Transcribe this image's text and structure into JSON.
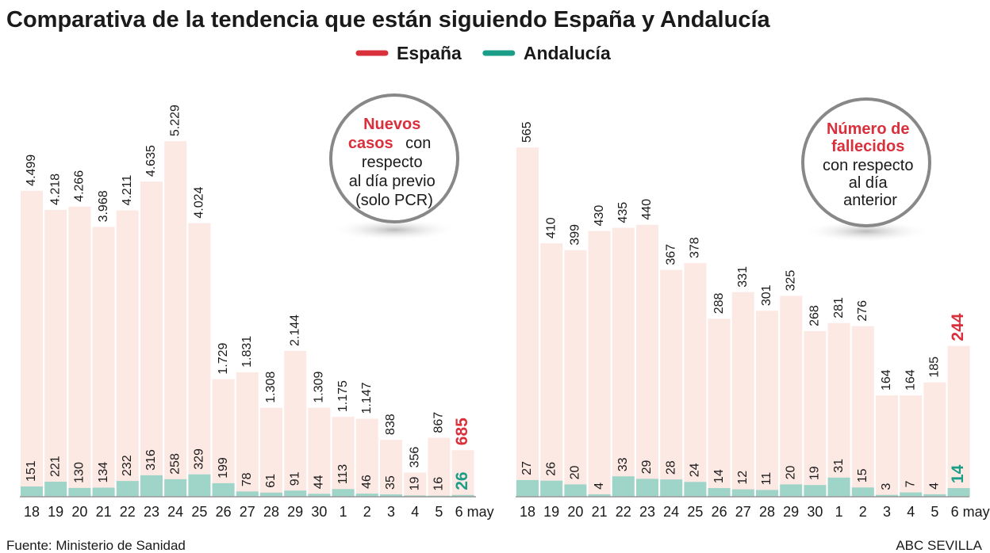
{
  "title": "Comparativa de la tendencia que están siguiendo España y Andalucía",
  "source": "Fuente: Ministerio de Sanidad",
  "credit": "ABC SEVILLA",
  "chart_data": [
    {
      "type": "bar",
      "annotation": {
        "highlight": [
          "Nuevos",
          "casos"
        ],
        "lines": [
          "con",
          "respecto",
          "al día previo",
          "(solo PCR)"
        ]
      },
      "categories": [
        "18",
        "19",
        "20",
        "21",
        "22",
        "23",
        "24",
        "25",
        "26",
        "27",
        "28",
        "29",
        "30",
        "1",
        "2",
        "3",
        "4",
        "5",
        "6 may"
      ],
      "ylim": [
        0,
        6000
      ],
      "series": [
        {
          "name": "España",
          "color": "#d9303c",
          "bar_color": "#fde9e4",
          "values": [
            4499,
            4218,
            4266,
            3968,
            4211,
            4635,
            5229,
            4024,
            1729,
            1831,
            1308,
            2144,
            1309,
            1175,
            1147,
            838,
            356,
            867,
            685
          ],
          "value_labels": [
            "4.499",
            "4.218",
            "4.266",
            "3.968",
            "4.211",
            "4.635",
            "5.229",
            "4.024",
            "1.729",
            "1.831",
            "1.308",
            "2.144",
            "1.309",
            "1.175",
            "1.147",
            "838",
            "356",
            "867",
            "685"
          ]
        },
        {
          "name": "Andalucía",
          "color": "#1a9e88",
          "bar_color": "#9fd4c8",
          "values": [
            151,
            221,
            130,
            134,
            232,
            316,
            258,
            329,
            199,
            78,
            61,
            91,
            44,
            113,
            46,
            35,
            19,
            16,
            26
          ]
        }
      ]
    },
    {
      "type": "bar",
      "annotation": {
        "highlight": [
          "Número de",
          "fallecidos"
        ],
        "lines": [
          "con respecto",
          "al día",
          "anterior"
        ]
      },
      "categories": [
        "18",
        "19",
        "20",
        "21",
        "22",
        "23",
        "24",
        "25",
        "26",
        "27",
        "28",
        "29",
        "30",
        "1",
        "2",
        "3",
        "4",
        "5",
        "6 may"
      ],
      "ylim": [
        0,
        660
      ],
      "series": [
        {
          "color": "#d9303c",
          "bar_color": "#fde9e4",
          "values": [
            565,
            410,
            399,
            430,
            435,
            440,
            367,
            378,
            288,
            331,
            301,
            325,
            268,
            281,
            276,
            164,
            164,
            185,
            244
          ]
        },
        {
          "color": "#1a9e88",
          "bar_color": "#9fd4c8",
          "values": [
            27,
            26,
            20,
            4,
            33,
            29,
            28,
            24,
            14,
            12,
            11,
            20,
            19,
            31,
            15,
            3,
            7,
            4,
            14
          ]
        }
      ]
    }
  ]
}
